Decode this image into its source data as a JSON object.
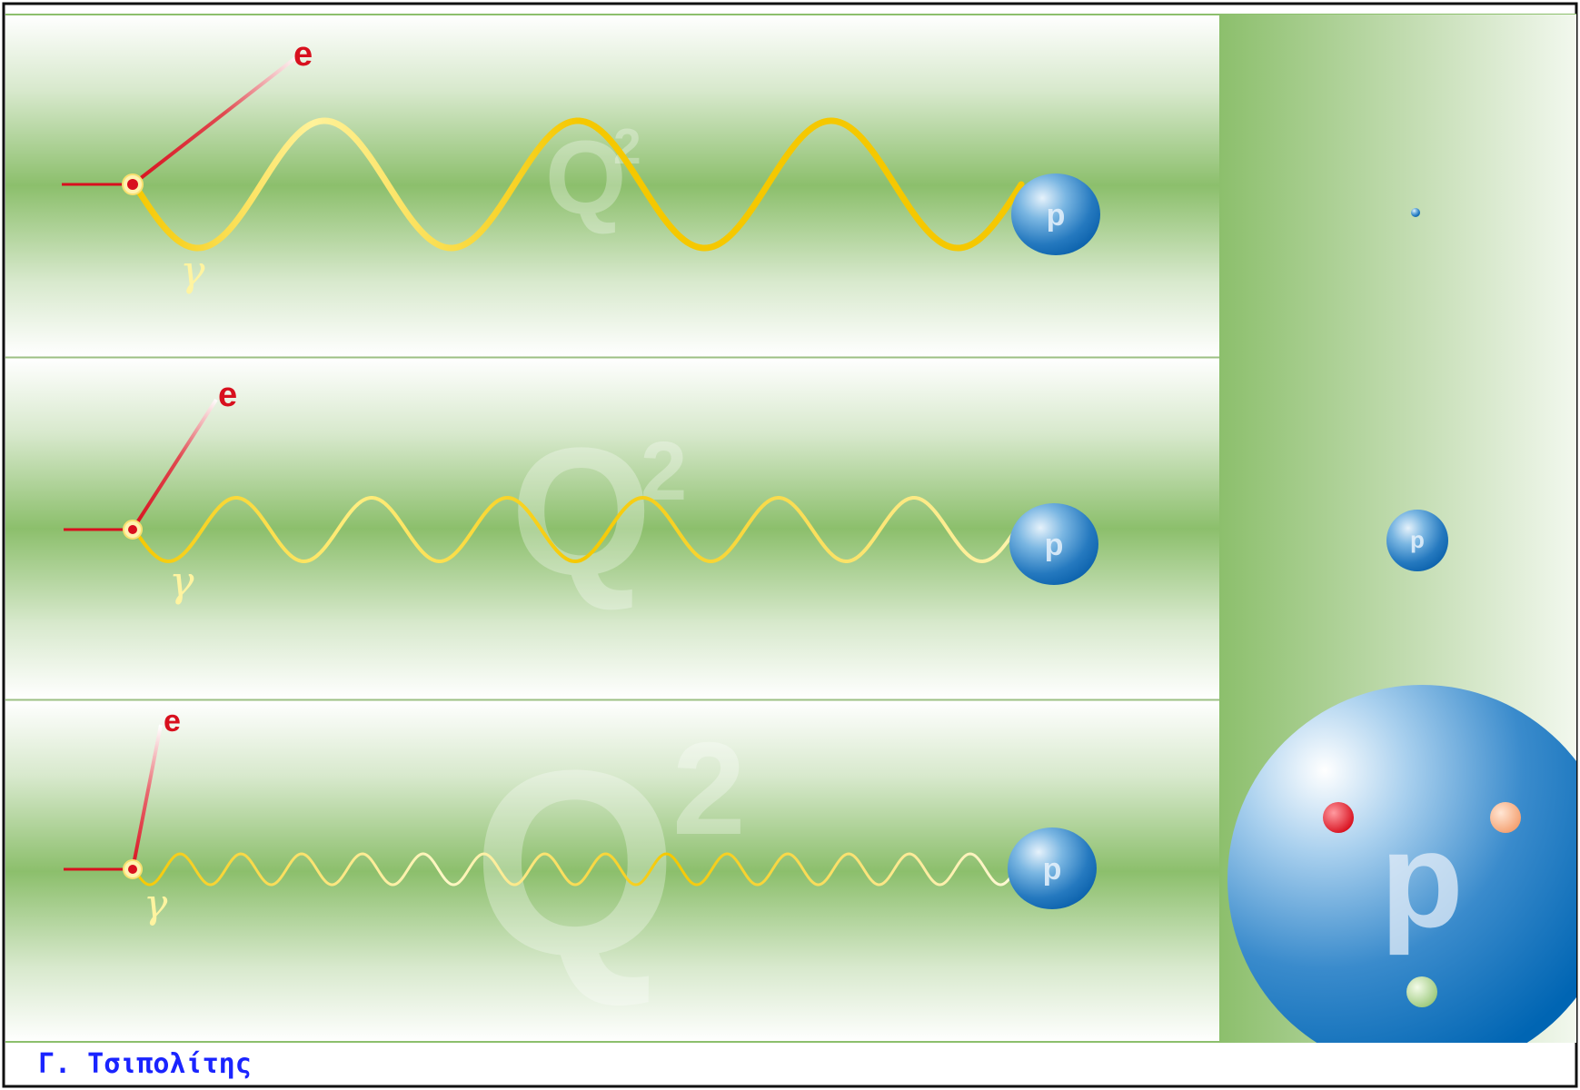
{
  "panels": [
    {
      "electron_label": "e",
      "photon_label": "γ",
      "q_letter": "Q",
      "q_exponent": "2",
      "proton_label": "p"
    },
    {
      "electron_label": "e",
      "photon_label": "γ",
      "q_letter": "Q",
      "q_exponent": "2",
      "proton_label": "p"
    },
    {
      "electron_label": "e",
      "photon_label": "γ",
      "q_letter": "Q",
      "q_exponent": "2",
      "proton_label": "p"
    }
  ],
  "side": {
    "small_proton_label": "p",
    "large_proton_label": "p"
  },
  "author": "Γ. Τσιπολίτης",
  "colors": {
    "green_band": "#8cbf6c",
    "electron_red": "#d8101e",
    "photon_yellow": "#f5c800",
    "proton_blue": "#2e86c8",
    "author_blue": "#1a24ff"
  }
}
